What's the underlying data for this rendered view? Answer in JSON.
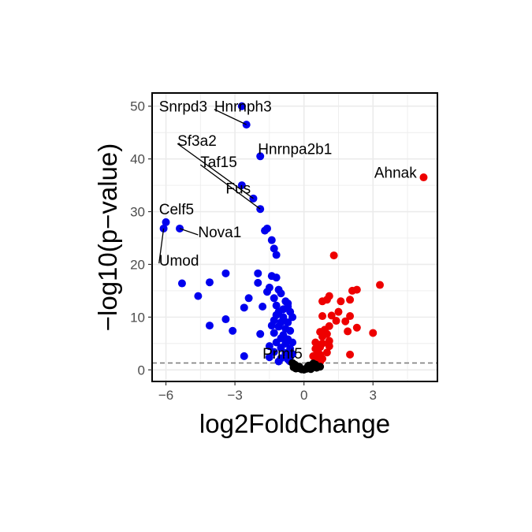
{
  "chart_data": {
    "type": "scatter",
    "title": "",
    "xlabel": "log2FoldChange",
    "ylabel": "−log10(p−value)",
    "xlim": [
      -6.6,
      5.8
    ],
    "ylim": [
      -2.2,
      52.5
    ],
    "x_ticks": [
      -6,
      -3,
      0,
      3
    ],
    "y_ticks": [
      0,
      10,
      20,
      30,
      40,
      50
    ],
    "x_tick_labels": [
      "−6",
      "−3",
      "0",
      "3"
    ],
    "y_tick_labels": [
      "0",
      "10",
      "20",
      "30",
      "40",
      "50"
    ],
    "grid": true,
    "legend": "none",
    "threshold_line": {
      "y": 1.3,
      "style": "dashed",
      "color": "#808080"
    },
    "colors": {
      "down": "#0000ee",
      "up": "#ee0000",
      "ns": "#000000"
    },
    "series": [
      {
        "group": "down",
        "points": [
          [
            -2.7,
            50.0
          ],
          [
            -2.5,
            46.5
          ],
          [
            -1.9,
            40.5
          ],
          [
            -2.7,
            35.0
          ],
          [
            -2.2,
            32.5
          ],
          [
            -1.9,
            30.5
          ],
          [
            -6.0,
            28.0
          ],
          [
            -6.1,
            26.8
          ],
          [
            -5.4,
            26.8
          ],
          [
            -1.6,
            26.8
          ],
          [
            -1.7,
            26.4
          ],
          [
            -1.4,
            24.6
          ],
          [
            -1.3,
            23.0
          ],
          [
            -1.2,
            21.8
          ],
          [
            -3.4,
            18.3
          ],
          [
            -2.0,
            18.3
          ],
          [
            -1.4,
            17.8
          ],
          [
            -1.2,
            17.5
          ],
          [
            -5.3,
            16.4
          ],
          [
            -4.1,
            16.6
          ],
          [
            -2.0,
            16.5
          ],
          [
            -1.5,
            15.6
          ],
          [
            -1.1,
            15.2
          ],
          [
            -1.6,
            14.8
          ],
          [
            -1.0,
            14.5
          ],
          [
            -1.3,
            13.6
          ],
          [
            -2.4,
            13.6
          ],
          [
            -4.6,
            14.0
          ],
          [
            -0.8,
            13.0
          ],
          [
            -0.7,
            12.6
          ],
          [
            -1.2,
            12.2
          ],
          [
            -2.6,
            11.8
          ],
          [
            -1.8,
            12.0
          ],
          [
            -0.9,
            11.5
          ],
          [
            -1.1,
            11.0
          ],
          [
            -0.6,
            11.0
          ],
          [
            -1.2,
            10.4
          ],
          [
            -0.9,
            10.0
          ],
          [
            -0.5,
            10.0
          ],
          [
            -1.3,
            9.4
          ],
          [
            -1.0,
            9.0
          ],
          [
            -0.7,
            9.0
          ],
          [
            -3.4,
            9.6
          ],
          [
            -4.1,
            8.4
          ],
          [
            -3.1,
            7.4
          ],
          [
            -1.1,
            8.2
          ],
          [
            -0.8,
            7.8
          ],
          [
            -0.6,
            7.4
          ],
          [
            -1.3,
            7.0
          ],
          [
            -0.9,
            6.6
          ],
          [
            -1.9,
            6.8
          ],
          [
            -1.0,
            6.0
          ],
          [
            -0.7,
            5.8
          ],
          [
            -1.2,
            5.2
          ],
          [
            -0.8,
            5.0
          ],
          [
            -0.5,
            5.2
          ],
          [
            -1.5,
            4.5
          ],
          [
            -1.0,
            4.2
          ],
          [
            -0.6,
            4.0
          ],
          [
            -1.3,
            3.4
          ],
          [
            -0.8,
            3.2
          ],
          [
            -0.5,
            3.0
          ],
          [
            -1.5,
            2.4
          ],
          [
            -2.6,
            2.6
          ],
          [
            -1.0,
            2.2
          ],
          [
            -0.7,
            2.0
          ],
          [
            -1.1,
            1.6
          ],
          [
            -0.6,
            1.6
          ],
          [
            -1.4,
            8.4
          ],
          [
            -0.7,
            12.0
          ]
        ]
      },
      {
        "group": "up",
        "points": [
          [
            5.2,
            36.5
          ],
          [
            1.3,
            21.7
          ],
          [
            3.3,
            16.1
          ],
          [
            2.3,
            15.2
          ],
          [
            2.1,
            15.0
          ],
          [
            1.1,
            14.0
          ],
          [
            1.0,
            13.3
          ],
          [
            0.8,
            13.0
          ],
          [
            1.6,
            13.0
          ],
          [
            2.0,
            13.3
          ],
          [
            1.5,
            11.0
          ],
          [
            1.2,
            10.3
          ],
          [
            2.0,
            10.2
          ],
          [
            0.8,
            10.2
          ],
          [
            1.8,
            9.2
          ],
          [
            1.4,
            9.3
          ],
          [
            1.1,
            8.3
          ],
          [
            2.3,
            8.0
          ],
          [
            0.9,
            7.6
          ],
          [
            1.9,
            7.3
          ],
          [
            3.0,
            7.0
          ],
          [
            0.7,
            7.2
          ],
          [
            1.0,
            6.8
          ],
          [
            0.8,
            6.3
          ],
          [
            1.1,
            5.5
          ],
          [
            0.8,
            5.0
          ],
          [
            0.5,
            5.2
          ],
          [
            0.7,
            4.3
          ],
          [
            0.5,
            4.0
          ],
          [
            0.6,
            3.5
          ],
          [
            1.0,
            3.3
          ],
          [
            0.7,
            2.9
          ],
          [
            2.0,
            2.9
          ],
          [
            0.4,
            2.6
          ],
          [
            0.6,
            2.4
          ],
          [
            0.8,
            2.1
          ],
          [
            0.5,
            1.9
          ],
          [
            0.7,
            1.5
          ],
          [
            1.1,
            4.5
          ],
          [
            0.6,
            3.0
          ]
        ]
      },
      {
        "group": "ns",
        "points": [
          [
            -0.5,
            1.3
          ],
          [
            -0.4,
            1.0
          ],
          [
            -0.3,
            0.6
          ],
          [
            -0.2,
            0.3
          ],
          [
            0.0,
            0.05
          ],
          [
            0.1,
            0.2
          ],
          [
            0.2,
            0.3
          ],
          [
            0.3,
            0.5
          ],
          [
            0.4,
            0.7
          ],
          [
            0.5,
            1.0
          ],
          [
            -0.1,
            0.1
          ],
          [
            -0.2,
            0.6
          ],
          [
            0.2,
            0.8
          ],
          [
            0.4,
            1.2
          ],
          [
            -0.35,
            0.25
          ],
          [
            0.55,
            0.4
          ],
          [
            0.7,
            0.6
          ],
          [
            0.3,
            0.15
          ],
          [
            -0.45,
            0.5
          ],
          [
            0.15,
            0.5
          ]
        ]
      }
    ],
    "labels": [
      {
        "text": "Snrpd3",
        "x": -2.7,
        "y": 50.0,
        "lx": -6.3,
        "ly": 50.0,
        "anchor": "start",
        "line": false
      },
      {
        "text": "Hnrnph3",
        "x": -2.5,
        "y": 46.5,
        "lx": -3.9,
        "ly": 50.0,
        "anchor": "start",
        "line": true
      },
      {
        "text": "Sf3a2",
        "x": -2.2,
        "y": 32.5,
        "lx": -5.5,
        "ly": 43.5,
        "anchor": "start",
        "line": true
      },
      {
        "text": "Hnrnpa2b1",
        "x": -1.9,
        "y": 40.5,
        "lx": -2.0,
        "ly": 42.0,
        "anchor": "start",
        "line": false
      },
      {
        "text": "Taf15",
        "x": -1.9,
        "y": 30.5,
        "lx": -4.5,
        "ly": 39.5,
        "anchor": "start",
        "line": true
      },
      {
        "text": "Fus",
        "x": -2.7,
        "y": 35.0,
        "lx": -3.4,
        "ly": 34.5,
        "anchor": "start",
        "line": false
      },
      {
        "text": "Ahnak",
        "x": 5.2,
        "y": 36.5,
        "lx": 4.9,
        "ly": 37.5,
        "anchor": "end",
        "line": false
      },
      {
        "text": "Celf5",
        "x": -6.0,
        "y": 28.0,
        "lx": -6.3,
        "ly": 30.5,
        "anchor": "start",
        "line": false
      },
      {
        "text": "Nova1",
        "x": -5.4,
        "y": 26.8,
        "lx": -4.6,
        "ly": 26.2,
        "anchor": "start",
        "line": true
      },
      {
        "text": "Umod",
        "x": -6.1,
        "y": 26.8,
        "lx": -6.3,
        "ly": 20.8,
        "anchor": "start",
        "line": true
      },
      {
        "text": "Prmt5",
        "x": 0.2,
        "y": 1.0,
        "lx": -1.8,
        "ly": 3.2,
        "anchor": "start",
        "line": false
      }
    ]
  }
}
